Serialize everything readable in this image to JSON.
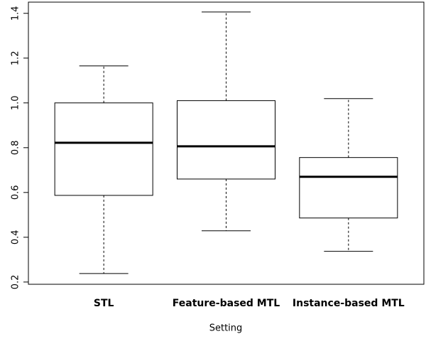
{
  "chart_data": {
    "type": "box",
    "x_label": "Setting",
    "categories": [
      "STL",
      "Feature-based MTL",
      "Instance-based MTL"
    ],
    "min": [
      0.238,
      0.429,
      0.337
    ],
    "q1": [
      0.587,
      0.66,
      0.486
    ],
    "median": [
      0.822,
      0.806,
      0.67
    ],
    "q3": [
      1.0,
      1.01,
      0.756
    ],
    "max": [
      1.165,
      1.406,
      1.019
    ],
    "color": "#000000",
    "ylim": [
      0.19,
      1.45
    ],
    "yticks": [
      0.2,
      0.4,
      0.6,
      0.8,
      {
        "value": 1,
        "label": "1.0"
      },
      1.2,
      1.4
    ]
  }
}
